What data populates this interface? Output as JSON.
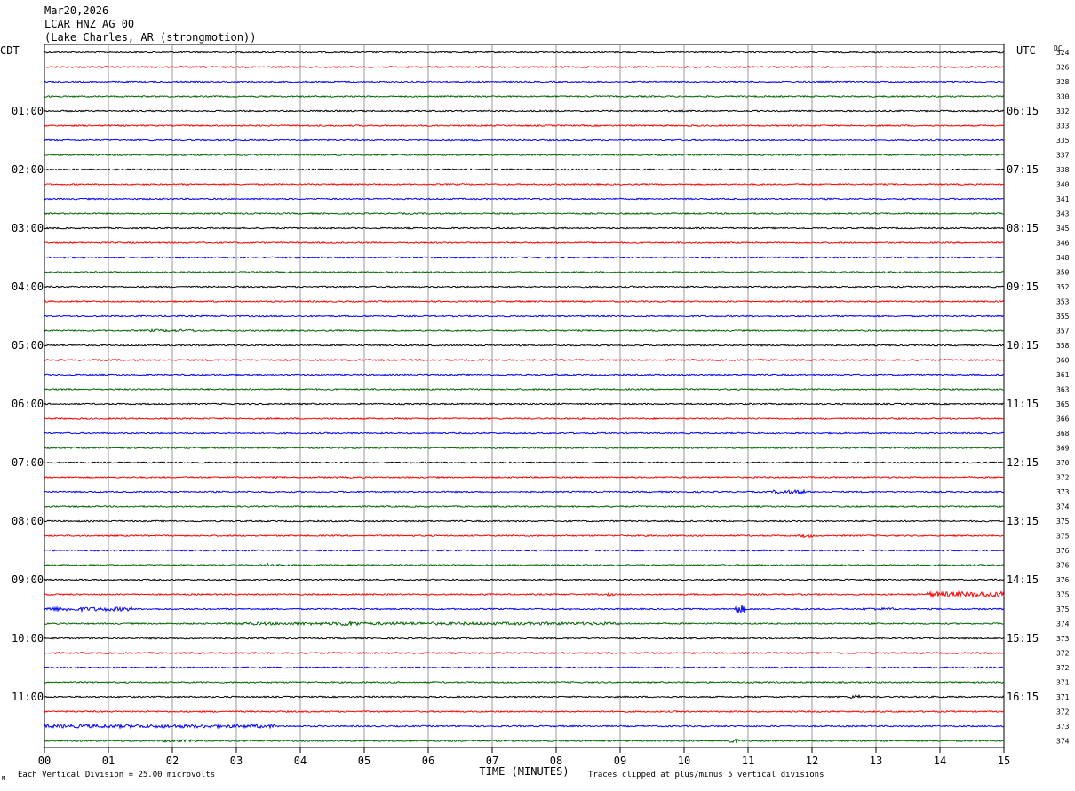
{
  "header": {
    "date": "Mar20,2026",
    "station": "LCAR HNZ AG 00",
    "location": "(Lake Charles, AR (strongmotion))"
  },
  "left_tz": "CDT",
  "right_tz": "UTC",
  "dc_label": "DC",
  "footer": {
    "scale_note": "Each Vertical Division =   25.00 microvolts",
    "clip_note": "Traces clipped at plus/minus 5 vertical divisions",
    "corner_mark": "M"
  },
  "colors": {
    "black": "#000000",
    "red": "#ff0000",
    "blue": "#0000ff",
    "green": "#006400",
    "grid": "#808080"
  },
  "chart_data": {
    "type": "line",
    "xlabel": "TIME (MINUTES)",
    "xlim": [
      0,
      15
    ],
    "x_ticks": [
      "00",
      "01",
      "02",
      "03",
      "04",
      "05",
      "06",
      "07",
      "08",
      "09",
      "10",
      "11",
      "12",
      "13",
      "14",
      "15"
    ],
    "left_hour_labels": [
      "01:00",
      "02:00",
      "03:00",
      "04:00",
      "05:00",
      "06:00",
      "07:00",
      "08:00",
      "09:00",
      "10:00",
      "11:00"
    ],
    "right_hour_labels": [
      "06:15",
      "07:15",
      "08:15",
      "09:15",
      "10:15",
      "11:15",
      "12:15",
      "13:15",
      "14:15",
      "15:15",
      "16:15"
    ],
    "trace_color_cycle": [
      "black",
      "red",
      "blue",
      "green"
    ],
    "dc_offsets": [
      "324",
      "326",
      "328",
      "330",
      "332",
      "333",
      "335",
      "337",
      "338",
      "340",
      "341",
      "343",
      "345",
      "346",
      "348",
      "350",
      "352",
      "353",
      "355",
      "357",
      "358",
      "360",
      "361",
      "363",
      "365",
      "366",
      "368",
      "369",
      "370",
      "372",
      "373",
      "374",
      "375",
      "375",
      "376",
      "376",
      "376",
      "375",
      "375",
      "374",
      "373",
      "372",
      "372",
      "371",
      "371",
      "372",
      "373",
      "374"
    ],
    "events": [
      {
        "trace": 19,
        "from": 1.6,
        "to": 2.4,
        "amp": 1.4
      },
      {
        "trace": 30,
        "from": 11.4,
        "to": 11.9,
        "amp": 2.2
      },
      {
        "trace": 33,
        "from": 11.8,
        "to": 12.0,
        "amp": 2.0
      },
      {
        "trace": 35,
        "from": 3.45,
        "to": 3.55,
        "amp": 3.0
      },
      {
        "trace": 37,
        "from": 8.8,
        "to": 8.9,
        "amp": 1.5
      },
      {
        "trace": 37,
        "from": 13.8,
        "to": 15.0,
        "amp": 3.0
      },
      {
        "trace": 38,
        "from": 0.0,
        "to": 1.4,
        "amp": 2.2
      },
      {
        "trace": 38,
        "from": 10.8,
        "to": 10.95,
        "amp": 5.0
      },
      {
        "trace": 38,
        "from": 12.8,
        "to": 13.3,
        "amp": 1.4
      },
      {
        "trace": 39,
        "from": 3.0,
        "to": 9.0,
        "amp": 1.6
      },
      {
        "trace": 39,
        "from": 4.6,
        "to": 4.9,
        "amp": 2.8
      },
      {
        "trace": 44,
        "from": 12.6,
        "to": 12.8,
        "amp": 2.2
      },
      {
        "trace": 46,
        "from": 0.0,
        "to": 3.6,
        "amp": 2.0
      },
      {
        "trace": 47,
        "from": 1.8,
        "to": 2.4,
        "amp": 1.4
      },
      {
        "trace": 47,
        "from": 10.7,
        "to": 10.85,
        "amp": 2.6
      }
    ],
    "noise_amp": 0.8
  }
}
